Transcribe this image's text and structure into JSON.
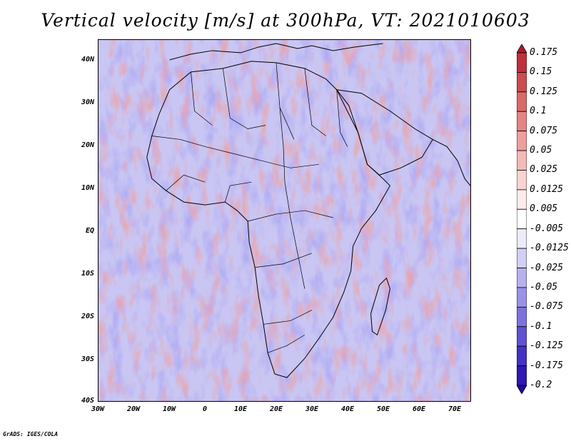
{
  "title": "Vertical velocity [m/s] at 300hPa, VT: 2021010603",
  "credit": "GrADS: IGES/COLA",
  "lat_labels": [
    "40N",
    "30N",
    "20N",
    "10N",
    "EQ",
    "10S",
    "20S",
    "30S",
    "40S"
  ],
  "lon_labels": [
    "30W",
    "20W",
    "10W",
    "0",
    "10E",
    "20E",
    "30E",
    "40E",
    "50E",
    "60E",
    "70E"
  ],
  "colorbar": {
    "labels": [
      "0.175",
      "0.15",
      "0.125",
      "0.1",
      "0.075",
      "0.05",
      "0.025",
      "0.0125",
      "0.005",
      "-0.005",
      "-0.0125",
      "-0.025",
      "-0.05",
      "-0.075",
      "-0.1",
      "-0.125",
      "-0.175",
      "-0.2"
    ],
    "colors": [
      "#b2182b",
      "#c0303a",
      "#cc4c4f",
      "#d96a68",
      "#e58583",
      "#ef9f9c",
      "#f5bab6",
      "#fad4d1",
      "#fdeceb",
      "#ffffff",
      "#ecebfb",
      "#d2cff5",
      "#b6b1ee",
      "#9a92e6",
      "#7d72dd",
      "#5f52d3",
      "#4232c6",
      "#2d18b4",
      "#1e0a9c"
    ]
  },
  "colors": {
    "positive": "#d9534f",
    "negative": "#5b57e0",
    "coast": "#000000"
  }
}
